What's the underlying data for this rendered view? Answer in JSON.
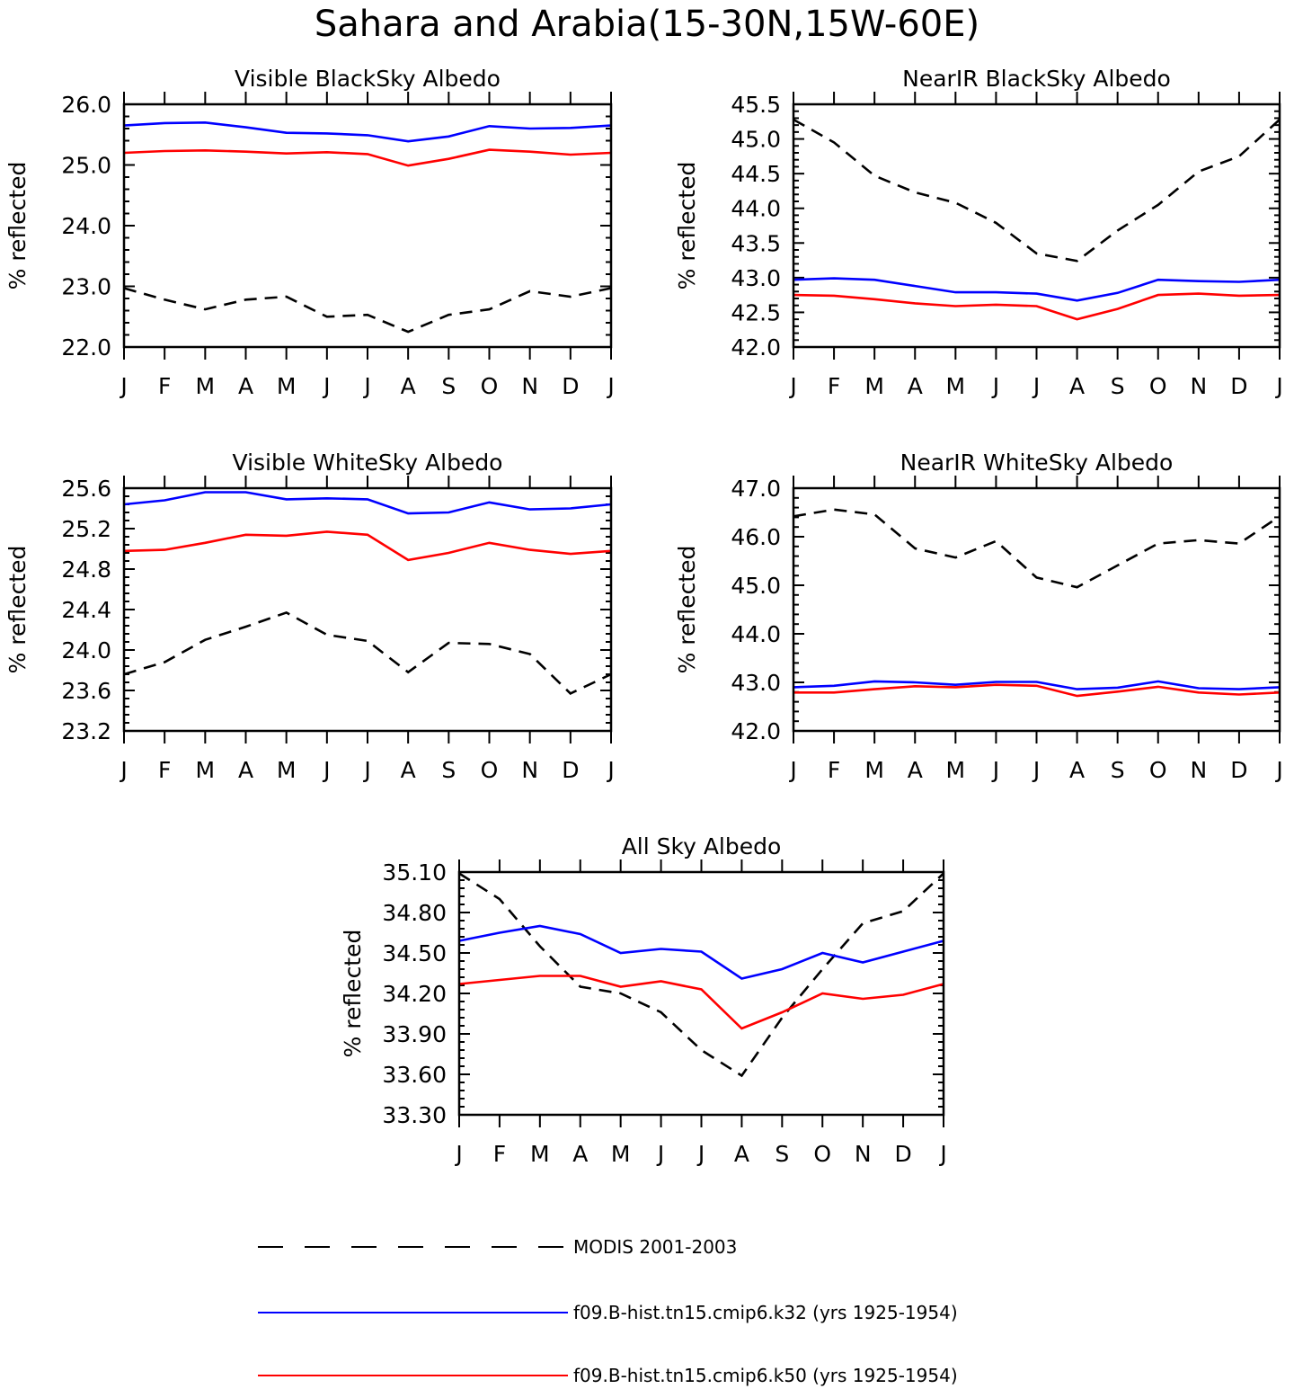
{
  "title": "Sahara and Arabia(15-30N,15W-60E)",
  "months": [
    "J",
    "F",
    "M",
    "A",
    "M",
    "J",
    "J",
    "A",
    "S",
    "O",
    "N",
    "D",
    "J"
  ],
  "legend": [
    {
      "label": "MODIS 2001-2003",
      "color": "#000000",
      "dash": true
    },
    {
      "label": "f09.B-hist.tn15.cmip6.k32 (yrs 1925-1954)",
      "color": "#0000ff",
      "dash": false
    },
    {
      "label": "f09.B-hist.tn15.cmip6.k50 (yrs 1925-1954)",
      "color": "#ff0000",
      "dash": false
    }
  ],
  "chart_data": [
    {
      "type": "line",
      "title": "Visible BlackSky Albedo",
      "ylabel": "% reflected",
      "ylim": [
        22.0,
        26.0
      ],
      "yticks": [
        "22.0",
        "23.0",
        "24.0",
        "25.0",
        "26.0"
      ],
      "categories": [
        "J",
        "F",
        "M",
        "A",
        "M",
        "J",
        "J",
        "A",
        "S",
        "O",
        "N",
        "D",
        "J"
      ],
      "series": [
        {
          "name": "MODIS 2001-2003",
          "color": "#000000",
          "dash": true,
          "values": [
            22.97,
            22.78,
            22.62,
            22.78,
            22.83,
            22.5,
            22.53,
            22.25,
            22.53,
            22.62,
            22.92,
            22.83,
            22.97
          ]
        },
        {
          "name": "f09.B-hist.tn15.cmip6.k32 (yrs 1925-1954)",
          "color": "#0000ff",
          "dash": false,
          "values": [
            25.65,
            25.69,
            25.7,
            25.62,
            25.53,
            25.52,
            25.49,
            25.39,
            25.47,
            25.64,
            25.6,
            25.61,
            25.65
          ]
        },
        {
          "name": "f09.B-hist.tn15.cmip6.k50 (yrs 1925-1954)",
          "color": "#ff0000",
          "dash": false,
          "values": [
            25.2,
            25.23,
            25.24,
            25.22,
            25.19,
            25.21,
            25.18,
            24.99,
            25.1,
            25.25,
            25.22,
            25.17,
            25.2
          ]
        }
      ]
    },
    {
      "type": "line",
      "title": "NearIR BlackSky Albedo",
      "ylabel": "% reflected",
      "ylim": [
        42.0,
        45.5
      ],
      "yticks": [
        "42.0",
        "42.5",
        "43.0",
        "43.5",
        "44.0",
        "44.5",
        "45.0",
        "45.5"
      ],
      "categories": [
        "J",
        "F",
        "M",
        "A",
        "M",
        "J",
        "J",
        "A",
        "S",
        "O",
        "N",
        "D",
        "J"
      ],
      "series": [
        {
          "name": "MODIS 2001-2003",
          "color": "#000000",
          "dash": true,
          "values": [
            45.28,
            44.95,
            44.47,
            44.23,
            44.08,
            43.79,
            43.35,
            43.24,
            43.68,
            44.05,
            44.53,
            44.75,
            45.28
          ]
        },
        {
          "name": "f09.B-hist.tn15.cmip6.k32 (yrs 1925-1954)",
          "color": "#0000ff",
          "dash": false,
          "values": [
            42.97,
            42.99,
            42.97,
            42.88,
            42.79,
            42.79,
            42.77,
            42.67,
            42.78,
            42.97,
            42.95,
            42.94,
            42.97
          ]
        },
        {
          "name": "f09.B-hist.tn15.cmip6.k50 (yrs 1925-1954)",
          "color": "#ff0000",
          "dash": false,
          "values": [
            42.75,
            42.74,
            42.69,
            42.63,
            42.59,
            42.61,
            42.59,
            42.4,
            42.55,
            42.75,
            42.77,
            42.74,
            42.75
          ]
        }
      ]
    },
    {
      "type": "line",
      "title": "Visible WhiteSky Albedo",
      "ylabel": "% reflected",
      "ylim": [
        23.2,
        25.6
      ],
      "yticks": [
        "23.2",
        "23.6",
        "24.0",
        "24.4",
        "24.8",
        "25.2",
        "25.6"
      ],
      "categories": [
        "J",
        "F",
        "M",
        "A",
        "M",
        "J",
        "J",
        "A",
        "S",
        "O",
        "N",
        "D",
        "J"
      ],
      "series": [
        {
          "name": "MODIS 2001-2003",
          "color": "#000000",
          "dash": true,
          "values": [
            23.76,
            23.88,
            24.1,
            24.23,
            24.37,
            24.15,
            24.09,
            23.78,
            24.07,
            24.06,
            23.96,
            23.57,
            23.76
          ]
        },
        {
          "name": "f09.B-hist.tn15.cmip6.k32 (yrs 1925-1954)",
          "color": "#0000ff",
          "dash": false,
          "values": [
            25.44,
            25.48,
            25.56,
            25.56,
            25.49,
            25.5,
            25.49,
            25.35,
            25.36,
            25.46,
            25.39,
            25.4,
            25.44
          ]
        },
        {
          "name": "f09.B-hist.tn15.cmip6.k50 (yrs 1925-1954)",
          "color": "#ff0000",
          "dash": false,
          "values": [
            24.98,
            24.99,
            25.06,
            25.14,
            25.13,
            25.17,
            25.14,
            24.89,
            24.96,
            25.06,
            24.99,
            24.95,
            24.98
          ]
        }
      ]
    },
    {
      "type": "line",
      "title": "NearIR WhiteSky Albedo",
      "ylabel": "% reflected",
      "ylim": [
        42.0,
        47.0
      ],
      "yticks": [
        "42.0",
        "43.0",
        "44.0",
        "45.0",
        "46.0",
        "47.0"
      ],
      "categories": [
        "J",
        "F",
        "M",
        "A",
        "M",
        "J",
        "J",
        "A",
        "S",
        "O",
        "N",
        "D",
        "J"
      ],
      "series": [
        {
          "name": "MODIS 2001-2003",
          "color": "#000000",
          "dash": true,
          "values": [
            46.42,
            46.56,
            46.46,
            45.76,
            45.57,
            45.91,
            45.16,
            44.96,
            45.41,
            45.86,
            45.93,
            45.86,
            46.42
          ]
        },
        {
          "name": "f09.B-hist.tn15.cmip6.k32 (yrs 1925-1954)",
          "color": "#0000ff",
          "dash": false,
          "values": [
            42.9,
            42.93,
            43.02,
            43.0,
            42.95,
            43.01,
            43.01,
            42.86,
            42.89,
            43.02,
            42.88,
            42.86,
            42.9
          ]
        },
        {
          "name": "f09.B-hist.tn15.cmip6.k50 (yrs 1925-1954)",
          "color": "#ff0000",
          "dash": false,
          "values": [
            42.79,
            42.79,
            42.86,
            42.92,
            42.9,
            42.95,
            42.93,
            42.72,
            42.81,
            42.91,
            42.79,
            42.75,
            42.79
          ]
        }
      ]
    },
    {
      "type": "line",
      "title": "All Sky Albedo",
      "ylabel": "% reflected",
      "ylim": [
        33.3,
        35.1
      ],
      "yticks": [
        "33.30",
        "33.60",
        "33.90",
        "34.20",
        "34.50",
        "34.80",
        "35.10"
      ],
      "categories": [
        "J",
        "F",
        "M",
        "A",
        "M",
        "J",
        "J",
        "A",
        "S",
        "O",
        "N",
        "D",
        "J"
      ],
      "series": [
        {
          "name": "MODIS 2001-2003",
          "color": "#000000",
          "dash": true,
          "values": [
            35.09,
            34.9,
            34.55,
            34.25,
            34.2,
            34.06,
            33.78,
            33.59,
            34.02,
            34.38,
            34.72,
            34.81,
            35.09
          ]
        },
        {
          "name": "f09.B-hist.tn15.cmip6.k32 (yrs 1925-1954)",
          "color": "#0000ff",
          "dash": false,
          "values": [
            34.59,
            34.65,
            34.7,
            34.64,
            34.5,
            34.53,
            34.51,
            34.31,
            34.38,
            34.5,
            34.43,
            34.51,
            34.59
          ]
        },
        {
          "name": "f09.B-hist.tn15.cmip6.k50 (yrs 1925-1954)",
          "color": "#ff0000",
          "dash": false,
          "values": [
            34.27,
            34.3,
            34.33,
            34.33,
            34.25,
            34.29,
            34.23,
            33.94,
            34.06,
            34.2,
            34.16,
            34.19,
            34.27
          ]
        }
      ]
    }
  ]
}
